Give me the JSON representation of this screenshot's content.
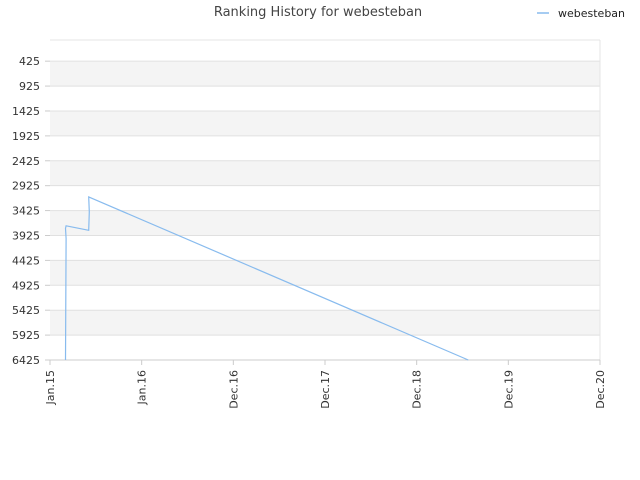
{
  "chart_data": {
    "type": "line",
    "title": "Ranking History for webesteban",
    "xlabel": "",
    "ylabel": "",
    "legend_position": "top-right",
    "y_inverted": true,
    "grid": true,
    "x_tick_labels": [
      "Jan.15",
      "Jan.16",
      "Dec.16",
      "Dec.17",
      "Dec.18",
      "Dec.19",
      "Dec.20"
    ],
    "y_tick_labels": [
      "425",
      "925",
      "1425",
      "1925",
      "2425",
      "2925",
      "3425",
      "3925",
      "4425",
      "4925",
      "5425",
      "5925",
      "6425"
    ],
    "xlim": [
      "2015-01",
      "2020-12"
    ],
    "ylim": [
      6425,
      0
    ],
    "series": [
      {
        "name": "webesteban",
        "color": "#88bbee",
        "x": [
          "2015-03",
          "2015-03",
          "2015-03",
          "2015-03",
          "2015-06",
          "2015-06",
          "2015-06",
          "2019-07"
        ],
        "y": [
          6425,
          3990,
          3780,
          3730,
          3820,
          3450,
          3150,
          6425
        ]
      }
    ]
  }
}
